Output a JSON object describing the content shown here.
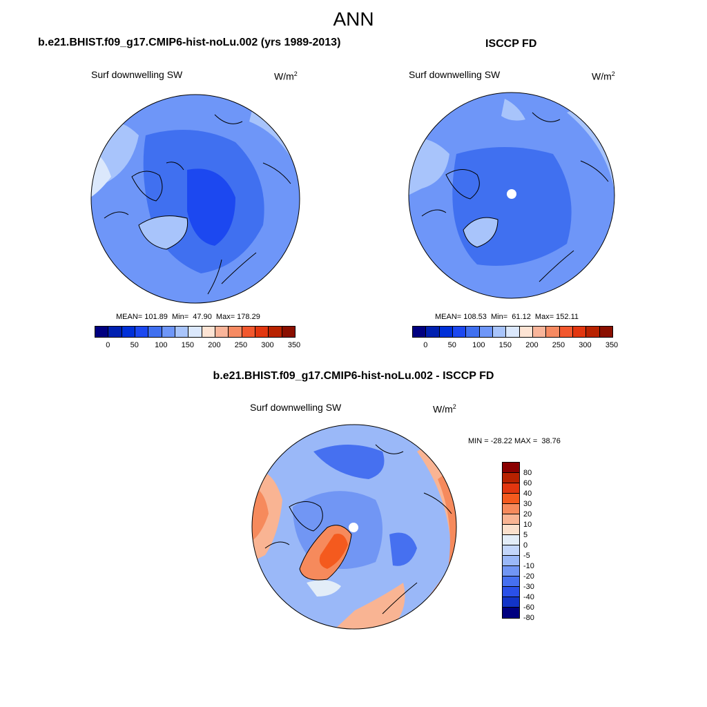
{
  "title": "ANN",
  "panels": [
    {
      "title": "b.e21.BHIST.f09_g17.CMIP6-hist-noLu.002 (yrs 1989-2013)",
      "variable": "Surf downwelling SW",
      "units": "W/m",
      "units_exp": "2",
      "stats": "MEAN= 101.89  Min=  47.90  Max= 178.29",
      "colorbar_ticks": [
        "0",
        "50",
        "100",
        "150",
        "200",
        "250",
        "300",
        "350"
      ]
    },
    {
      "title": "ISCCP FD",
      "variable": "Surf downwelling SW",
      "units": "W/m",
      "units_exp": "2",
      "stats": "MEAN= 108.53  Min=  61.12  Max= 152.11",
      "colorbar_ticks": [
        "0",
        "50",
        "100",
        "150",
        "200",
        "250",
        "300",
        "350"
      ]
    },
    {
      "title": "b.e21.BHIST.f09_g17.CMIP6-hist-noLu.002 - ISCCP FD",
      "variable": "Surf downwelling SW",
      "units": "W/m",
      "units_exp": "2",
      "stats": "MIN = -28.22 MAX =  38.76",
      "colorbar_ticks": [
        "80",
        "60",
        "40",
        "30",
        "20",
        "10",
        "5",
        "0",
        "-5",
        "-10",
        "-20",
        "-30",
        "-40",
        "-60",
        "-80"
      ]
    }
  ],
  "colors": {
    "abs_scale": [
      "#000080",
      "#0020b0",
      "#0030d8",
      "#1c48f0",
      "#4070f0",
      "#6e96f8",
      "#a8c4fb",
      "#dbe8fc",
      "#fde4d4",
      "#f9b59a",
      "#f68a62",
      "#f2582e",
      "#e2360f",
      "#b82200",
      "#8a0f00"
    ],
    "diff_scale": [
      "#8a0000",
      "#b82200",
      "#e2360f",
      "#f45a1e",
      "#f68a5c",
      "#f9b493",
      "#fbe0cc",
      "#e3edf8",
      "#c3d6fb",
      "#9ab8f8",
      "#7196f4",
      "#4670f0",
      "#2a50e8",
      "#1234c8",
      "#000080"
    ],
    "polar_hole": "#ffffff",
    "coast": "#000000"
  }
}
